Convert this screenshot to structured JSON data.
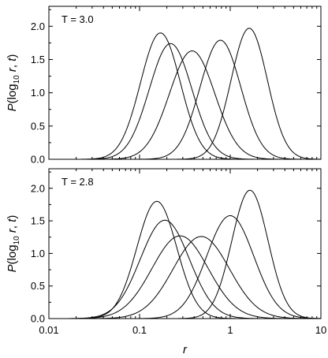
{
  "chart_data": [
    {
      "type": "line",
      "panel_label": "T = 3.0",
      "xlabel": "",
      "ylabel": "P(log10 r, t)",
      "xscale": "log",
      "xlim": [
        0.01,
        10
      ],
      "ylim": [
        0,
        2.3
      ],
      "yticks": [
        "0.0",
        "0.5",
        "1.0",
        "1.5",
        "2.0"
      ],
      "xticks": [],
      "series": [
        {
          "peak_r": 0.17,
          "peak": 1.9,
          "sigma": 0.22
        },
        {
          "peak_r": 0.22,
          "peak": 1.74,
          "sigma": 0.235
        },
        {
          "peak_r": 0.38,
          "peak": 1.63,
          "sigma": 0.25
        },
        {
          "peak_r": 0.78,
          "peak": 1.79,
          "sigma": 0.225
        },
        {
          "peak_r": 1.62,
          "peak": 1.97,
          "sigma": 0.2
        }
      ]
    },
    {
      "type": "line",
      "panel_label": "T = 2.8",
      "xlabel": "r",
      "ylabel": "P(log10 r, t)",
      "xscale": "log",
      "xlim": [
        0.01,
        10
      ],
      "ylim": [
        0,
        2.3
      ],
      "yticks": [
        "0.0",
        "0.5",
        "1.0",
        "1.5",
        "2.0"
      ],
      "xticks": [
        "0.01",
        "0.1",
        "1",
        "10"
      ],
      "series": [
        {
          "peak_r": 0.155,
          "peak": 1.8,
          "sigma": 0.22
        },
        {
          "peak_r": 0.19,
          "peak": 1.51,
          "sigma": 0.27
        },
        {
          "peak_r": 0.28,
          "peak": 1.27,
          "sigma": 0.31
        },
        {
          "peak_r": 0.48,
          "peak": 1.26,
          "sigma": 0.31
        },
        {
          "peak_r": 1.0,
          "peak": 1.58,
          "sigma": 0.26
        },
        {
          "peak_r": 1.65,
          "peak": 1.97,
          "sigma": 0.2
        }
      ]
    }
  ]
}
